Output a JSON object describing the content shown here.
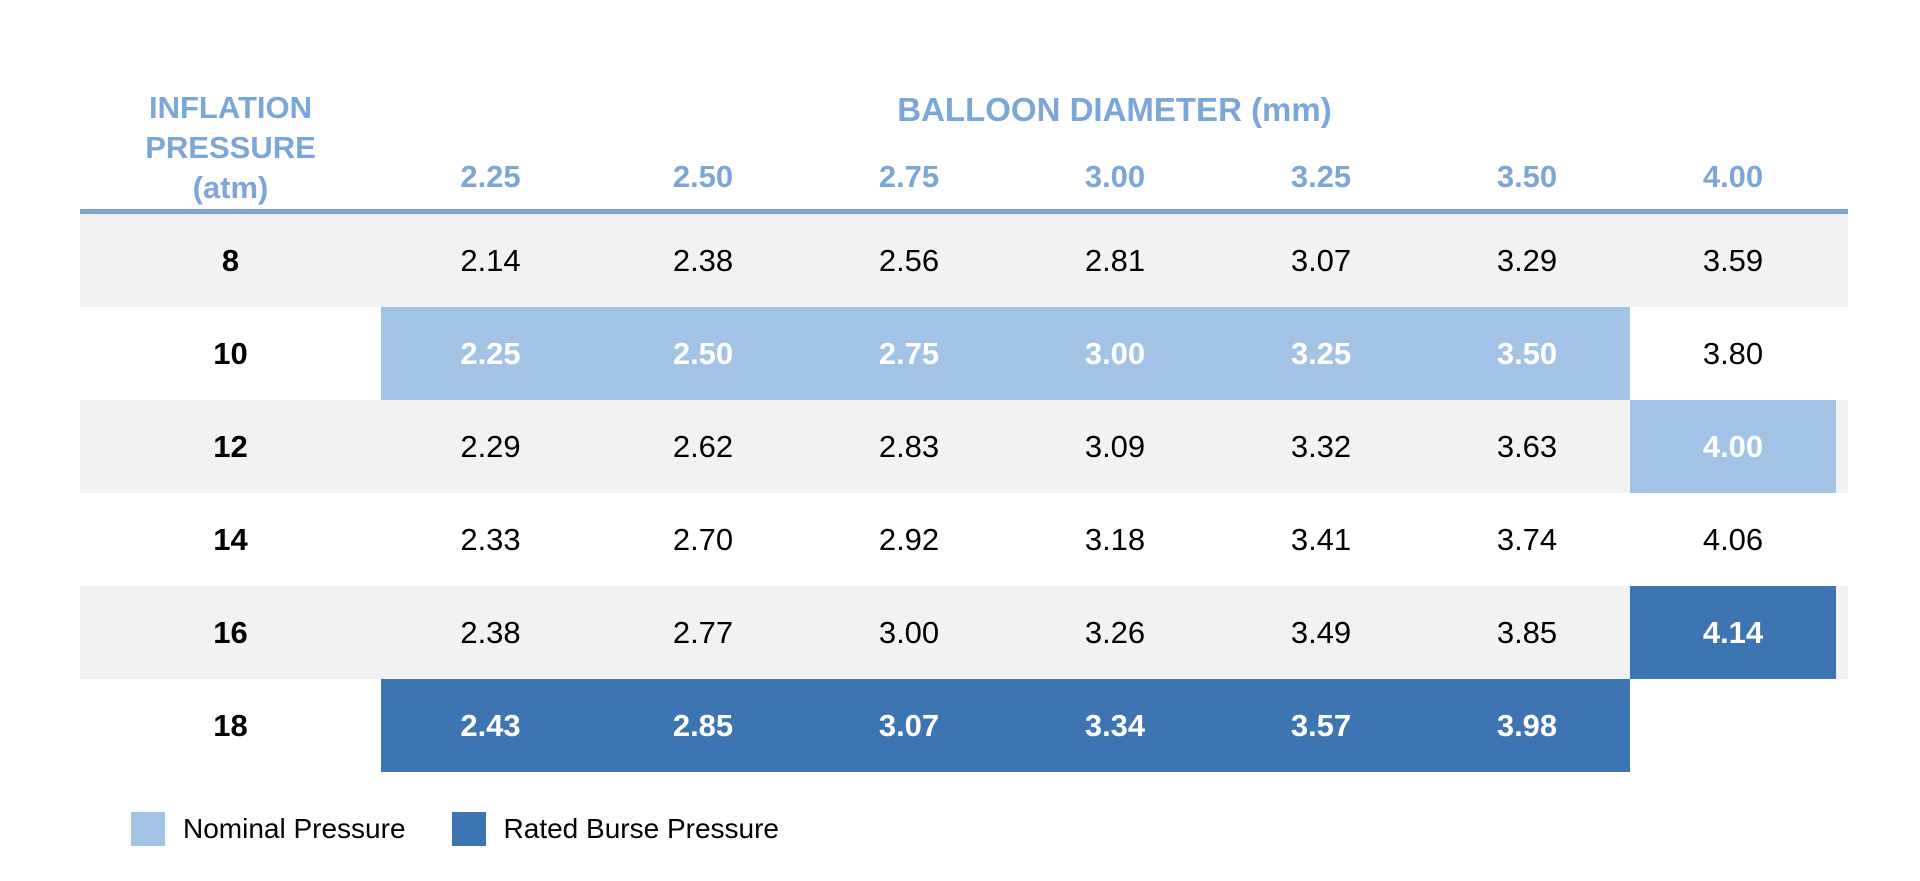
{
  "table": {
    "row_header_title": [
      "INFLATION",
      "PRESSURE",
      "(atm)"
    ],
    "column_group_title": "BALLOON DIAMETER (mm)",
    "columns": [
      "2.25",
      "2.50",
      "2.75",
      "3.00",
      "3.25",
      "3.50",
      "4.00"
    ],
    "rows": [
      {
        "pressure": "8",
        "values": [
          "2.14",
          "2.38",
          "2.56",
          "2.81",
          "3.07",
          "3.29",
          "3.59"
        ],
        "status": [
          "",
          "",
          "",
          "",
          "",
          "",
          ""
        ]
      },
      {
        "pressure": "10",
        "values": [
          "2.25",
          "2.50",
          "2.75",
          "3.00",
          "3.25",
          "3.50",
          "3.80"
        ],
        "status": [
          "nominal",
          "nominal",
          "nominal",
          "nominal",
          "nominal",
          "nominal",
          ""
        ]
      },
      {
        "pressure": "12",
        "values": [
          "2.29",
          "2.62",
          "2.83",
          "3.09",
          "3.32",
          "3.63",
          "4.00"
        ],
        "status": [
          "",
          "",
          "",
          "",
          "",
          "",
          "nominal"
        ]
      },
      {
        "pressure": "14",
        "values": [
          "2.33",
          "2.70",
          "2.92",
          "3.18",
          "3.41",
          "3.74",
          "4.06"
        ],
        "status": [
          "",
          "",
          "",
          "",
          "",
          "",
          ""
        ]
      },
      {
        "pressure": "16",
        "values": [
          "2.38",
          "2.77",
          "3.00",
          "3.26",
          "3.49",
          "3.85",
          "4.14"
        ],
        "status": [
          "",
          "",
          "",
          "",
          "",
          "",
          "rated"
        ]
      },
      {
        "pressure": "18",
        "values": [
          "2.43",
          "2.85",
          "3.07",
          "3.34",
          "3.57",
          "3.98",
          ""
        ],
        "status": [
          "rated",
          "rated",
          "rated",
          "rated",
          "rated",
          "rated",
          "blank"
        ]
      }
    ]
  },
  "legend": [
    {
      "label": "Nominal Pressure",
      "color": "#a3c3e6"
    },
    {
      "label": "Rated Burse Pressure",
      "color": "#3d74b2"
    }
  ],
  "colors": {
    "header_text": "#7aa6d8",
    "row_shade": "#f2f2f2",
    "nominal": "#a3c3e6",
    "rated": "#3d74b2"
  }
}
